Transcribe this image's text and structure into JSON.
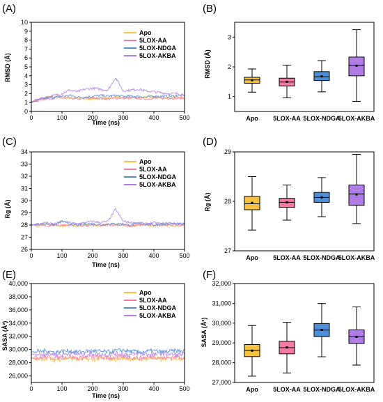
{
  "colors": {
    "Apo": "#f5c242",
    "5LOX-AA": "#f37aa3",
    "5LOX-NDGA": "#4f8fd6",
    "5LOX-AKBA": "#b07de6"
  },
  "chart_data": [
    {
      "panel": "(A)",
      "type": "line",
      "xlabel": "Time (ns)",
      "ylabel": "RMSD (Å)",
      "xlim": [
        0,
        500
      ],
      "ylim": [
        0,
        10
      ],
      "xticks": [
        "0",
        "100",
        "200",
        "300",
        "400",
        "500"
      ],
      "yticks": [
        "0",
        "1",
        "2",
        "3",
        "4",
        "5",
        "6",
        "7",
        "8",
        "9",
        "10"
      ],
      "legend": [
        "Apo",
        "5LOX-AA",
        "5LOX-NDGA",
        "5LOX-AKBA"
      ],
      "series": [
        {
          "name": "Apo",
          "x": [
            0,
            25,
            50,
            75,
            100,
            125,
            150,
            175,
            200,
            225,
            250,
            275,
            300,
            325,
            350,
            375,
            400,
            425,
            450,
            475,
            500
          ],
          "y": [
            1.0,
            1.3,
            1.6,
            1.6,
            1.6,
            1.5,
            1.5,
            1.4,
            1.4,
            1.5,
            1.5,
            1.6,
            1.6,
            1.5,
            1.5,
            1.6,
            1.6,
            1.5,
            1.5,
            1.6,
            1.6
          ]
        },
        {
          "name": "5LOX-AA",
          "x": [
            0,
            25,
            50,
            75,
            100,
            125,
            150,
            175,
            200,
            225,
            250,
            275,
            300,
            325,
            350,
            375,
            400,
            425,
            450,
            475,
            500
          ],
          "y": [
            1.0,
            1.3,
            1.4,
            1.5,
            1.5,
            1.5,
            1.4,
            1.5,
            1.5,
            1.5,
            1.4,
            1.5,
            1.5,
            1.5,
            1.5,
            1.4,
            1.5,
            1.5,
            1.5,
            1.5,
            1.5
          ]
        },
        {
          "name": "5LOX-NDGA",
          "x": [
            0,
            25,
            50,
            75,
            100,
            125,
            150,
            175,
            200,
            225,
            250,
            275,
            300,
            325,
            350,
            375,
            400,
            425,
            450,
            475,
            500
          ],
          "y": [
            1.0,
            1.3,
            1.5,
            1.6,
            1.7,
            1.8,
            1.6,
            1.6,
            1.7,
            1.8,
            1.7,
            1.8,
            1.7,
            1.7,
            1.7,
            1.6,
            1.7,
            1.7,
            1.7,
            1.8,
            1.8
          ]
        },
        {
          "name": "5LOX-AKBA",
          "x": [
            0,
            25,
            50,
            75,
            100,
            125,
            150,
            175,
            200,
            225,
            250,
            275,
            300,
            325,
            350,
            375,
            400,
            425,
            450,
            475,
            500
          ],
          "y": [
            1.1,
            1.4,
            1.6,
            1.8,
            2.0,
            2.4,
            2.2,
            2.5,
            2.6,
            2.5,
            2.4,
            3.8,
            2.3,
            2.4,
            2.5,
            2.3,
            2.2,
            2.1,
            2.0,
            2.0,
            1.9
          ]
        }
      ]
    },
    {
      "panel": "(B)",
      "type": "box",
      "ylabel": "RMSD (Å)",
      "ylim": [
        0.5,
        3.5
      ],
      "yticks": [
        "1",
        "2",
        "3"
      ],
      "ytickvals": [
        1,
        2,
        3
      ],
      "categories": [
        "Apo",
        "5LOX-AA",
        "5LOX-NDGA",
        "5LOX-AKBA"
      ],
      "boxes": [
        {
          "min": 1.15,
          "q1": 1.45,
          "median": 1.56,
          "q3": 1.65,
          "max": 1.93,
          "mean": 1.55
        },
        {
          "min": 0.96,
          "q1": 1.36,
          "median": 1.49,
          "q3": 1.62,
          "max": 2.06,
          "mean": 1.5
        },
        {
          "min": 1.16,
          "q1": 1.54,
          "median": 1.67,
          "q3": 1.84,
          "max": 2.21,
          "mean": 1.68
        },
        {
          "min": 0.84,
          "q1": 1.7,
          "median": 2.05,
          "q3": 2.33,
          "max": 3.25,
          "mean": 2.04
        }
      ]
    },
    {
      "panel": "(C)",
      "type": "line",
      "xlabel": "Time (ns)",
      "ylabel": "Rg (Å)",
      "xlim": [
        0,
        500
      ],
      "ylim": [
        26,
        34
      ],
      "xticks": [
        "0",
        "100",
        "200",
        "300",
        "400",
        "500"
      ],
      "yticks": [
        "26",
        "27",
        "28",
        "29",
        "30",
        "31",
        "32",
        "33",
        "34"
      ],
      "legend": [
        "Apo",
        "5LOX-AA",
        "5LOX-NDGA",
        "5LOX-AKBA"
      ],
      "series": [
        {
          "name": "Apo",
          "x": [
            0,
            25,
            50,
            75,
            100,
            125,
            150,
            175,
            200,
            225,
            250,
            275,
            300,
            325,
            350,
            375,
            400,
            425,
            450,
            475,
            500
          ],
          "y": [
            28.0,
            27.9,
            28.1,
            28.0,
            27.9,
            28.0,
            27.9,
            28.0,
            28.0,
            27.9,
            28.0,
            28.1,
            28.0,
            27.9,
            28.0,
            28.0,
            27.9,
            28.0,
            28.0,
            27.9,
            28.0
          ]
        },
        {
          "name": "5LOX-AA",
          "x": [
            0,
            25,
            50,
            75,
            100,
            125,
            150,
            175,
            200,
            225,
            250,
            275,
            300,
            325,
            350,
            375,
            400,
            425,
            450,
            475,
            500
          ],
          "y": [
            28.0,
            28.0,
            27.9,
            28.0,
            28.0,
            28.0,
            28.0,
            27.9,
            28.0,
            28.0,
            28.0,
            28.0,
            28.0,
            27.9,
            28.0,
            28.0,
            28.0,
            28.0,
            28.0,
            28.0,
            28.0
          ]
        },
        {
          "name": "5LOX-NDGA",
          "x": [
            0,
            25,
            50,
            75,
            100,
            125,
            150,
            175,
            200,
            225,
            250,
            275,
            300,
            325,
            350,
            375,
            400,
            425,
            450,
            475,
            500
          ],
          "y": [
            28.0,
            28.1,
            28.1,
            28.0,
            28.3,
            28.1,
            28.0,
            28.1,
            28.1,
            28.0,
            28.1,
            28.1,
            28.1,
            28.0,
            28.1,
            28.1,
            28.0,
            28.1,
            28.1,
            28.1,
            28.1
          ]
        },
        {
          "name": "5LOX-AKBA",
          "x": [
            0,
            25,
            50,
            75,
            100,
            125,
            150,
            175,
            200,
            225,
            250,
            275,
            300,
            325,
            350,
            375,
            400,
            425,
            450,
            475,
            500
          ],
          "y": [
            28.0,
            28.1,
            28.2,
            28.1,
            28.3,
            28.2,
            28.1,
            28.2,
            28.3,
            28.2,
            28.3,
            29.3,
            28.3,
            28.2,
            28.2,
            28.1,
            28.2,
            28.1,
            28.2,
            28.1,
            28.1
          ]
        }
      ]
    },
    {
      "panel": "(D)",
      "type": "box",
      "ylabel": "Rg (Å)",
      "ylim": [
        27,
        29
      ],
      "yticks": [
        "27",
        "28",
        "29"
      ],
      "ytickvals": [
        27,
        28,
        29
      ],
      "categories": [
        "Apo",
        "5LOX-AA",
        "5LOX-NDGA",
        "5LOX-AKBA"
      ],
      "boxes": [
        {
          "min": 27.42,
          "q1": 27.83,
          "median": 27.95,
          "q3": 28.1,
          "max": 28.5,
          "mean": 27.97
        },
        {
          "min": 27.62,
          "q1": 27.88,
          "median": 27.98,
          "q3": 28.06,
          "max": 28.33,
          "mean": 27.98
        },
        {
          "min": 27.69,
          "q1": 27.98,
          "median": 28.08,
          "q3": 28.18,
          "max": 28.48,
          "mean": 28.08
        },
        {
          "min": 27.55,
          "q1": 27.92,
          "median": 28.15,
          "q3": 28.33,
          "max": 28.95,
          "mean": 28.14
        }
      ]
    },
    {
      "panel": "(E)",
      "type": "line",
      "xlabel": "Time (ns)",
      "ylabel": "SASA (Å²)",
      "xlim": [
        0,
        500
      ],
      "ylim": [
        25000,
        40000
      ],
      "xticks": [
        "0",
        "100",
        "200",
        "300",
        "400",
        "500"
      ],
      "yticks": [
        "26,000",
        "28,000",
        "30,000",
        "32,000",
        "34,000",
        "36,000",
        "38,000",
        "40,000"
      ],
      "ytickvals": [
        26000,
        28000,
        30000,
        32000,
        34000,
        36000,
        38000,
        40000
      ],
      "legend": [
        "Apo",
        "5LOX-AA",
        "5LOX-NDGA",
        "5LOX-AKBA"
      ],
      "series": [
        {
          "name": "Apo",
          "x": [
            0,
            25,
            50,
            75,
            100,
            125,
            150,
            175,
            200,
            225,
            250,
            275,
            300,
            325,
            350,
            375,
            400,
            425,
            450,
            475,
            500
          ],
          "y": [
            28600,
            28500,
            28700,
            28400,
            28600,
            28700,
            28500,
            28600,
            28400,
            28700,
            28600,
            28500,
            28700,
            28600,
            28500,
            28600,
            28700,
            28500,
            28600,
            28700,
            28600
          ]
        },
        {
          "name": "5LOX-AA",
          "x": [
            0,
            25,
            50,
            75,
            100,
            125,
            150,
            175,
            200,
            225,
            250,
            275,
            300,
            325,
            350,
            375,
            400,
            425,
            450,
            475,
            500
          ],
          "y": [
            28800,
            28700,
            28900,
            28700,
            28800,
            28900,
            28700,
            28800,
            28900,
            28800,
            28700,
            28800,
            28900,
            28800,
            28700,
            28800,
            28900,
            28700,
            28800,
            28900,
            28800
          ]
        },
        {
          "name": "5LOX-NDGA",
          "x": [
            0,
            25,
            50,
            75,
            100,
            125,
            150,
            175,
            200,
            225,
            250,
            275,
            300,
            325,
            350,
            375,
            400,
            425,
            450,
            475,
            500
          ],
          "y": [
            29600,
            29700,
            29800,
            29600,
            29700,
            29800,
            29600,
            29700,
            29800,
            29700,
            29600,
            29800,
            29900,
            29700,
            29600,
            29700,
            29800,
            29600,
            29700,
            29800,
            29700
          ]
        },
        {
          "name": "5LOX-AKBA",
          "x": [
            0,
            25,
            50,
            75,
            100,
            125,
            150,
            175,
            200,
            225,
            250,
            275,
            300,
            325,
            350,
            375,
            400,
            425,
            450,
            475,
            500
          ],
          "y": [
            29300,
            29200,
            29400,
            29300,
            29200,
            29400,
            29300,
            29200,
            29400,
            29300,
            29200,
            29400,
            29300,
            29200,
            29400,
            29300,
            29200,
            29400,
            29300,
            29200,
            29300
          ]
        }
      ]
    },
    {
      "panel": "(F)",
      "type": "box",
      "ylabel": "SASA (Å²)",
      "ylim": [
        27000,
        32000
      ],
      "yticks": [
        "27,000",
        "28,000",
        "29,000",
        "30,000",
        "31,000",
        "32,000"
      ],
      "ytickvals": [
        27000,
        28000,
        29000,
        30000,
        31000,
        32000
      ],
      "categories": [
        "Apo",
        "5LOX-AA",
        "5LOX-NDGA",
        "5LOX-AKBA"
      ],
      "boxes": [
        {
          "min": 27320,
          "q1": 28310,
          "median": 28620,
          "q3": 28920,
          "max": 29880,
          "mean": 28610
        },
        {
          "min": 27480,
          "q1": 28450,
          "median": 28760,
          "q3": 29080,
          "max": 30040,
          "mean": 28770
        },
        {
          "min": 28300,
          "q1": 29320,
          "median": 29650,
          "q3": 29980,
          "max": 30990,
          "mean": 29660
        },
        {
          "min": 27880,
          "q1": 28970,
          "median": 29310,
          "q3": 29660,
          "max": 30820,
          "mean": 29310
        }
      ]
    }
  ]
}
